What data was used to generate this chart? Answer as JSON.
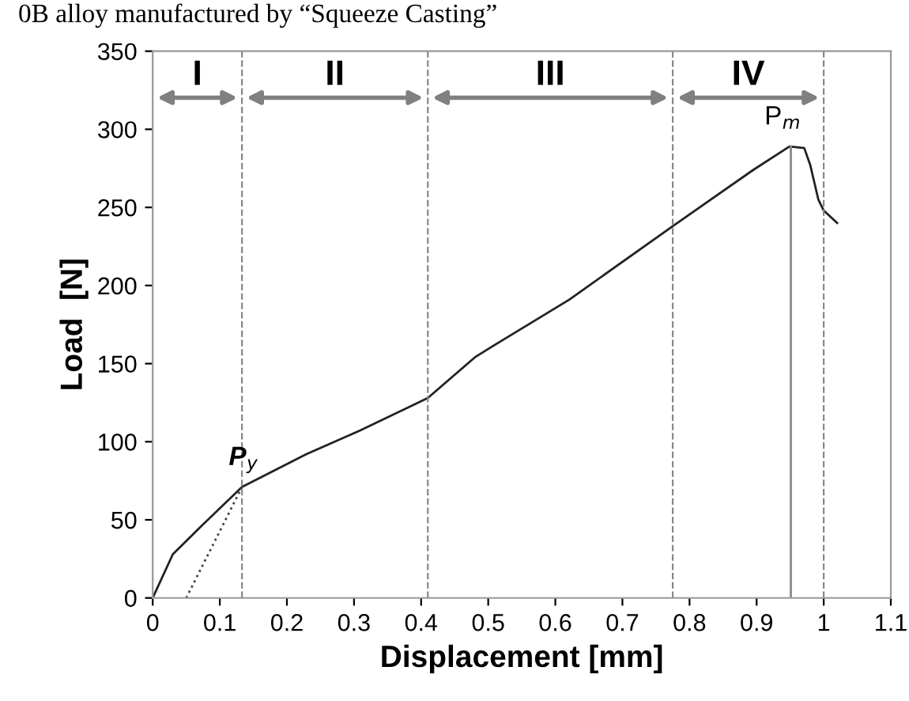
{
  "chart_data": {
    "type": "line",
    "xlabel": "Displacement [mm]",
    "ylabel": "Load  [N]",
    "xlim": [
      0,
      1.1
    ],
    "xticks": [
      0,
      0.1,
      0.2,
      0.3,
      0.4,
      0.5,
      0.6,
      0.7,
      0.8,
      0.9,
      1,
      1.1
    ],
    "ylim": [
      0,
      350
    ],
    "yticks": [
      0,
      50,
      100,
      150,
      200,
      250,
      300,
      350
    ],
    "grid": false,
    "legend": false,
    "marker": "none",
    "series": [
      {
        "color": "#222222",
        "line_style": "solid",
        "x": [
          0,
          0.03,
          0.07,
          0.133,
          0.229,
          0.308,
          0.41,
          0.48,
          0.506,
          0.621,
          0.775,
          0.895,
          0.949,
          0.971,
          0.98,
          0.992,
          1.0,
          1.02
        ],
        "values": [
          0,
          28,
          45,
          71,
          92,
          107,
          128,
          154,
          161,
          191,
          238,
          274,
          289,
          288,
          277,
          255,
          248,
          240
        ]
      },
      {
        "color": "#444444",
        "line_style": "dotted",
        "x": [
          0.05,
          0.133
        ],
        "values": [
          0,
          71
        ]
      },
      {
        "color": "#888888",
        "line_style": "solid",
        "x": [
          0.951,
          0.951
        ],
        "values": [
          0,
          289
        ]
      }
    ],
    "ref_lines": [
      {
        "axis": "x",
        "value": 0.133,
        "color": "#888888",
        "line_style": "dashed"
      },
      {
        "axis": "x",
        "value": 0.41,
        "color": "#888888",
        "line_style": "dashed"
      },
      {
        "axis": "x",
        "value": 0.775,
        "color": "#888888",
        "line_style": "dashed"
      },
      {
        "axis": "x",
        "value": 1.0,
        "color": "#888888",
        "line_style": "dashed"
      }
    ],
    "annotations": [
      "0B alloy manufactured by “Squeeze Casting”",
      "I",
      "II",
      "III",
      "IV",
      {
        "text": "P$_{y}$",
        "x": 0.133,
        "y": 71
      },
      {
        "text": "P$_{m}$",
        "x": 0.951,
        "y": 289
      }
    ]
  }
}
